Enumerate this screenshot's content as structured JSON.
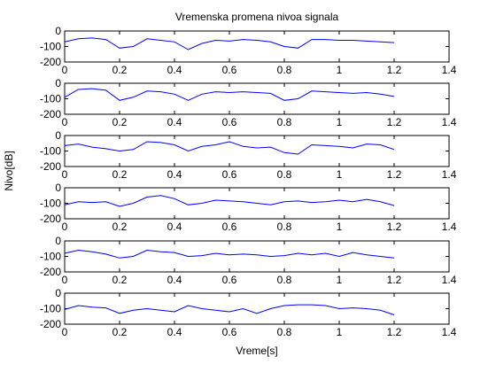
{
  "figure": {
    "title": "Vremenska promena nivoa signala",
    "xlabel": "Vreme[s]",
    "ylabel": "Nivo[dB]"
  },
  "chart_data": {
    "type": "line",
    "title": "Vremenska promena nivoa signala",
    "xlabel": "Vreme[s]",
    "ylabel": "Nivo[dB]",
    "xlim": [
      0,
      1.4
    ],
    "ylim": [
      -200,
      0
    ],
    "xticks": [
      "0",
      "0.2",
      "0.4",
      "0.6",
      "0.8",
      "1",
      "1.2",
      "1.4"
    ],
    "yticks": [
      "0",
      "-100",
      "-200"
    ],
    "grid": false,
    "line_color": "#0000ff",
    "x": [
      0,
      0.05,
      0.1,
      0.15,
      0.2,
      0.25,
      0.3,
      0.35,
      0.4,
      0.45,
      0.5,
      0.55,
      0.6,
      0.65,
      0.7,
      0.75,
      0.8,
      0.85,
      0.9,
      0.95,
      1.0,
      1.05,
      1.1,
      1.15,
      1.2
    ],
    "series": [
      {
        "values": [
          -70,
          -50,
          -45,
          -55,
          -110,
          -100,
          -50,
          -60,
          -70,
          -120,
          -80,
          -60,
          -65,
          -55,
          -60,
          -70,
          -100,
          -110,
          -55,
          -55,
          -60,
          -60,
          -65,
          -70,
          -75
        ]
      },
      {
        "values": [
          -90,
          -40,
          -35,
          -45,
          -110,
          -90,
          -50,
          -55,
          -70,
          -110,
          -70,
          -55,
          -60,
          -55,
          -60,
          -65,
          -110,
          -100,
          -50,
          -55,
          -60,
          -65,
          -60,
          -70,
          -85
        ]
      },
      {
        "values": [
          -65,
          -55,
          -75,
          -85,
          -100,
          -90,
          -40,
          -45,
          -60,
          -100,
          -70,
          -60,
          -40,
          -70,
          -80,
          -75,
          -110,
          -120,
          -60,
          -65,
          -70,
          -80,
          -55,
          -60,
          -90
        ]
      },
      {
        "values": [
          -110,
          -90,
          -95,
          -90,
          -120,
          -100,
          -60,
          -50,
          -70,
          -110,
          -100,
          -80,
          -85,
          -90,
          -100,
          -110,
          -90,
          -85,
          -95,
          -90,
          -80,
          -90,
          -75,
          -90,
          -115
        ]
      },
      {
        "values": [
          -80,
          -60,
          -70,
          -85,
          -110,
          -100,
          -60,
          -70,
          -75,
          -100,
          -95,
          -80,
          -90,
          -85,
          -90,
          -100,
          -95,
          -80,
          -90,
          -80,
          -100,
          -75,
          -90,
          -100,
          -110
        ]
      },
      {
        "values": [
          -105,
          -80,
          -90,
          -95,
          -130,
          -110,
          -100,
          -110,
          -120,
          -80,
          -100,
          -110,
          -120,
          -100,
          -130,
          -100,
          -80,
          -75,
          -75,
          -80,
          -100,
          -95,
          -100,
          -110,
          -140
        ]
      }
    ]
  }
}
